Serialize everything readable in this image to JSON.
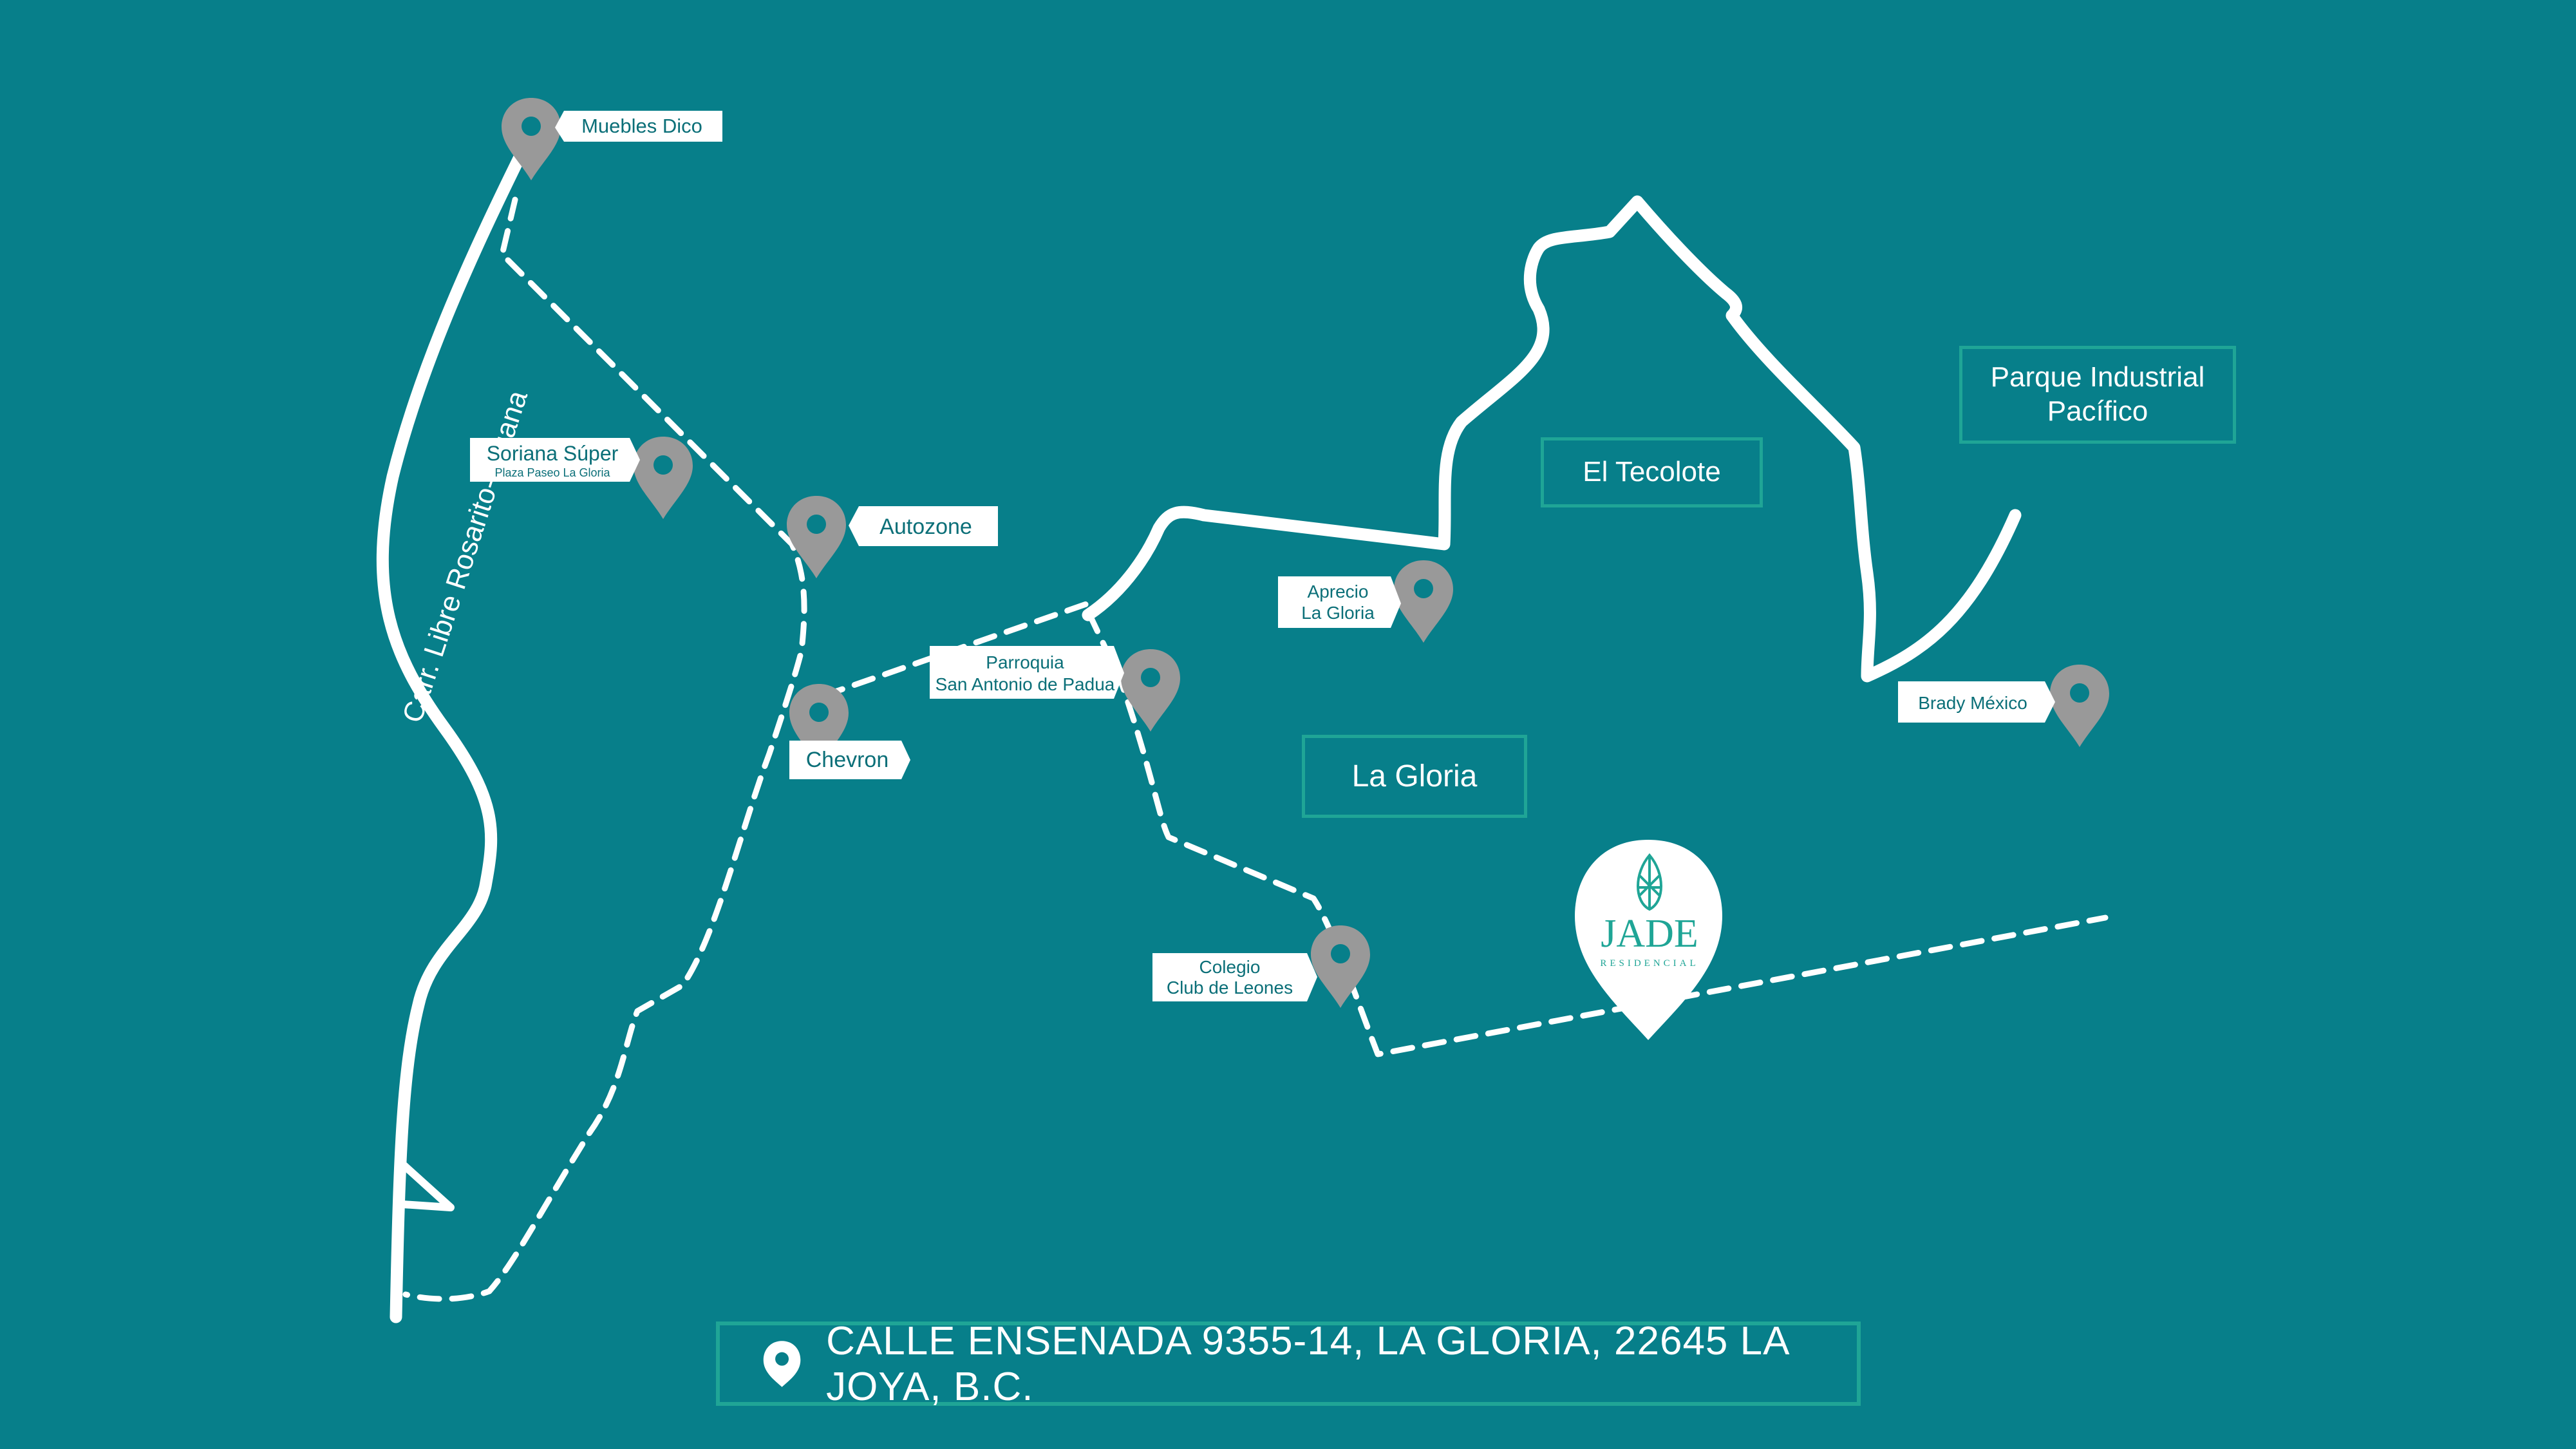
{
  "colors": {
    "background": "#077f8a",
    "accent_border": "#1fa596",
    "road": "#ffffff",
    "pin": "#999999",
    "label_text": "#0b6f78"
  },
  "road_label": "Carr. Libre Rosarito-Tijuana",
  "places": {
    "muebles_dico": "Muebles Dico",
    "soriana_title": "Soriana Súper",
    "soriana_sub": "Plaza Paseo La Gloria",
    "autozone": "Autozone",
    "chevron": "Chevron",
    "parroquia_line1": "Parroquia",
    "parroquia_line2": "San Antonio de Padua",
    "aprecio_line1": "Aprecio",
    "aprecio_line2": "La Gloria",
    "colegio_line1": "Colegio",
    "colegio_line2": "Club de Leones",
    "brady": "Brady México"
  },
  "zones": {
    "el_tecolote": "El Tecolote",
    "la_gloria": "La Gloria",
    "parque_line1": "Parque Industrial",
    "parque_line2": "Pacífico"
  },
  "destination": {
    "logo": "JADE",
    "logo_sub": "RESIDENCIAL"
  },
  "address": {
    "icon": "location-pin-icon",
    "text": "CALLE ENSENADA 9355-14, LA GLORIA, 22645 LA JOYA, B.C."
  }
}
